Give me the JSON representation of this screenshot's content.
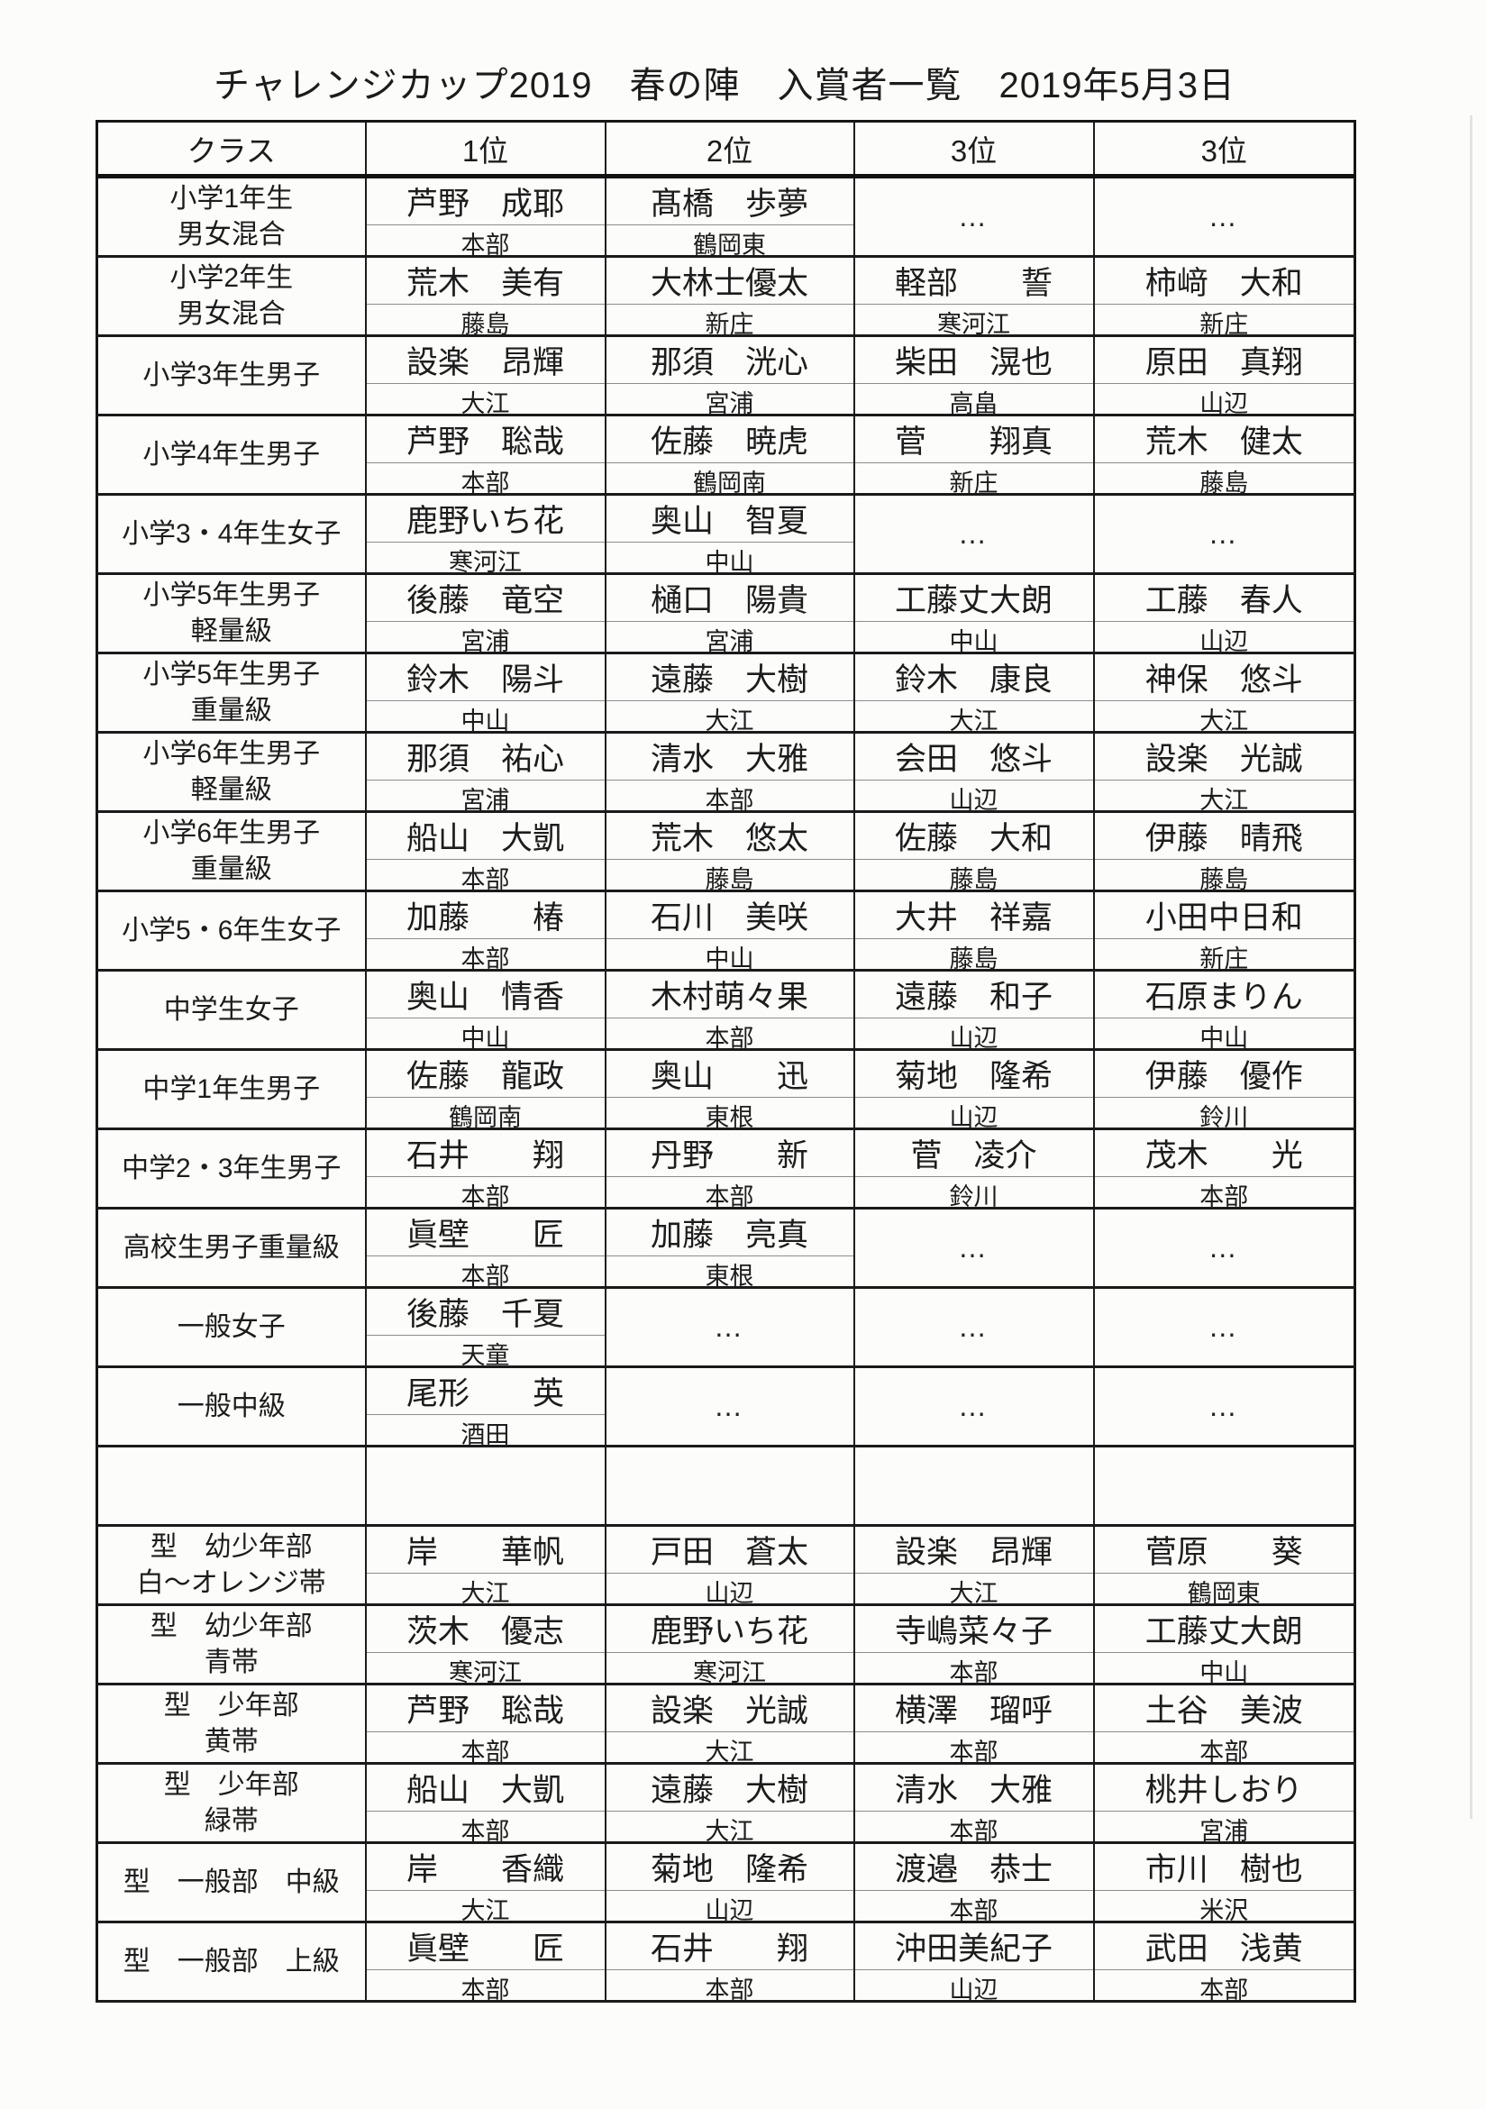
{
  "title": "チャレンジカップ2019　春の陣　入賞者一覧　2019年5月3日",
  "table": {
    "columns": [
      "クラス",
      "1位",
      "2位",
      "3位",
      "3位"
    ],
    "empty_marker": "…",
    "rows": [
      {
        "class_lines": [
          "小学1年生",
          "男女混合"
        ],
        "cells": [
          {
            "name": "芦野　成耶",
            "club": "本部"
          },
          {
            "name": "髙橋　歩夢",
            "club": "鶴岡東"
          },
          "dots",
          "dots"
        ]
      },
      {
        "class_lines": [
          "小学2年生",
          "男女混合"
        ],
        "cells": [
          {
            "name": "荒木　美有",
            "club": "藤島"
          },
          {
            "name": "大林士優太",
            "club": "新庄"
          },
          {
            "name": "軽部　　誓",
            "club": "寒河江"
          },
          {
            "name": "柿﨑　大和",
            "club": "新庄"
          }
        ]
      },
      {
        "class_lines": [
          "小学3年生男子"
        ],
        "cells": [
          {
            "name": "設楽　昂輝",
            "club": "大江"
          },
          {
            "name": "那須　洸心",
            "club": "宮浦"
          },
          {
            "name": "柴田　滉也",
            "club": "高畠"
          },
          {
            "name": "原田　真翔",
            "club": "山辺"
          }
        ]
      },
      {
        "class_lines": [
          "小学4年生男子"
        ],
        "cells": [
          {
            "name": "芦野　聡哉",
            "club": "本部"
          },
          {
            "name": "佐藤　暁虎",
            "club": "鶴岡南"
          },
          {
            "name": "菅　　翔真",
            "club": "新庄"
          },
          {
            "name": "荒木　健太",
            "club": "藤島"
          }
        ]
      },
      {
        "class_lines": [
          "小学3・4年生女子"
        ],
        "cells": [
          {
            "name": "鹿野いち花",
            "club": "寒河江"
          },
          {
            "name": "奥山　智夏",
            "club": "中山"
          },
          "dots",
          "dots"
        ]
      },
      {
        "class_lines": [
          "小学5年生男子",
          "軽量級"
        ],
        "cells": [
          {
            "name": "後藤　竜空",
            "club": "宮浦"
          },
          {
            "name": "樋口　陽貴",
            "club": "宮浦"
          },
          {
            "name": "工藤丈大朗",
            "club": "中山"
          },
          {
            "name": "工藤　春人",
            "club": "山辺"
          }
        ]
      },
      {
        "class_lines": [
          "小学5年生男子",
          "重量級"
        ],
        "cells": [
          {
            "name": "鈴木　陽斗",
            "club": "中山"
          },
          {
            "name": "遠藤　大樹",
            "club": "大江"
          },
          {
            "name": "鈴木　康良",
            "club": "大江"
          },
          {
            "name": "神保　悠斗",
            "club": "大江"
          }
        ]
      },
      {
        "class_lines": [
          "小学6年生男子",
          "軽量級"
        ],
        "cells": [
          {
            "name": "那須　祐心",
            "club": "宮浦"
          },
          {
            "name": "清水　大雅",
            "club": "本部"
          },
          {
            "name": "会田　悠斗",
            "club": "山辺"
          },
          {
            "name": "設楽　光誠",
            "club": "大江"
          }
        ]
      },
      {
        "class_lines": [
          "小学6年生男子",
          "重量級"
        ],
        "cells": [
          {
            "name": "船山　大凱",
            "club": "本部"
          },
          {
            "name": "荒木　悠太",
            "club": "藤島"
          },
          {
            "name": "佐藤　大和",
            "club": "藤島"
          },
          {
            "name": "伊藤　晴飛",
            "club": "藤島"
          }
        ]
      },
      {
        "class_lines": [
          "小学5・6年生女子"
        ],
        "cells": [
          {
            "name": "加藤　　椿",
            "club": "本部"
          },
          {
            "name": "石川　美咲",
            "club": "中山"
          },
          {
            "name": "大井　祥嘉",
            "club": "藤島"
          },
          {
            "name": "小田中日和",
            "club": "新庄"
          }
        ]
      },
      {
        "class_lines": [
          "中学生女子"
        ],
        "cells": [
          {
            "name": "奥山　情香",
            "club": "中山"
          },
          {
            "name": "木村萌々果",
            "club": "本部"
          },
          {
            "name": "遠藤　和子",
            "club": "山辺"
          },
          {
            "name": "石原まりん",
            "club": "中山"
          }
        ]
      },
      {
        "class_lines": [
          "中学1年生男子"
        ],
        "cells": [
          {
            "name": "佐藤　龍政",
            "club": "鶴岡南"
          },
          {
            "name": "奥山　　迅",
            "club": "東根"
          },
          {
            "name": "菊地　隆希",
            "club": "山辺"
          },
          {
            "name": "伊藤　優作",
            "club": "鈴川"
          }
        ]
      },
      {
        "class_lines": [
          "中学2・3年生男子"
        ],
        "cells": [
          {
            "name": "石井　　翔",
            "club": "本部"
          },
          {
            "name": "丹野　　新",
            "club": "本部"
          },
          {
            "name": "菅　凌介",
            "club": "鈴川"
          },
          {
            "name": "茂木　　光",
            "club": "本部"
          }
        ]
      },
      {
        "class_lines": [
          "高校生男子重量級"
        ],
        "cells": [
          {
            "name": "眞壁　　匠",
            "club": "本部"
          },
          {
            "name": "加藤　亮真",
            "club": "東根"
          },
          "dots",
          "dots"
        ]
      },
      {
        "class_lines": [
          "一般女子"
        ],
        "cells": [
          {
            "name": "後藤　千夏",
            "club": "天童"
          },
          "dots",
          "dots",
          "dots"
        ]
      },
      {
        "class_lines": [
          "一般中級"
        ],
        "cells": [
          {
            "name": "尾形　　英",
            "club": "酒田"
          },
          "dots",
          "dots",
          "dots"
        ]
      },
      {
        "class_lines": [],
        "cells": [
          null,
          null,
          null,
          null
        ]
      },
      {
        "class_lines": [
          "型　幼少年部",
          "白～オレンジ帯"
        ],
        "cells": [
          {
            "name": "岸　　華帆",
            "club": "大江"
          },
          {
            "name": "戸田　蒼太",
            "club": "山辺"
          },
          {
            "name": "設楽　昂輝",
            "club": "大江"
          },
          {
            "name": "菅原　　葵",
            "club": "鶴岡東"
          }
        ]
      },
      {
        "class_lines": [
          "型　幼少年部",
          "青帯"
        ],
        "cells": [
          {
            "name": "茨木　優志",
            "club": "寒河江"
          },
          {
            "name": "鹿野いち花",
            "club": "寒河江"
          },
          {
            "name": "寺嶋菜々子",
            "club": "本部"
          },
          {
            "name": "工藤丈大朗",
            "club": "中山"
          }
        ]
      },
      {
        "class_lines": [
          "型　少年部",
          "黄帯"
        ],
        "cells": [
          {
            "name": "芦野　聡哉",
            "club": "本部"
          },
          {
            "name": "設楽　光誠",
            "club": "大江"
          },
          {
            "name": "横澤　瑠呼",
            "club": "本部"
          },
          {
            "name": "土谷　美波",
            "club": "本部"
          }
        ]
      },
      {
        "class_lines": [
          "型　少年部",
          "緑帯"
        ],
        "cells": [
          {
            "name": "船山　大凱",
            "club": "本部"
          },
          {
            "name": "遠藤　大樹",
            "club": "大江"
          },
          {
            "name": "清水　大雅",
            "club": "本部"
          },
          {
            "name": "桃井しおり",
            "club": "宮浦"
          }
        ]
      },
      {
        "class_lines": [
          "型　一般部　中級"
        ],
        "cells": [
          {
            "name": "岸　　香織",
            "club": "大江"
          },
          {
            "name": "菊地　隆希",
            "club": "山辺"
          },
          {
            "name": "渡邉　恭士",
            "club": "本部"
          },
          {
            "name": "市川　樹也",
            "club": "米沢"
          }
        ]
      },
      {
        "class_lines": [
          "型　一般部　上級"
        ],
        "cells": [
          {
            "name": "眞壁　　匠",
            "club": "本部"
          },
          {
            "name": "石井　　翔",
            "club": "本部"
          },
          {
            "name": "沖田美紀子",
            "club": "山辺"
          },
          {
            "name": "武田　浅黄",
            "club": "本部"
          }
        ]
      }
    ]
  }
}
